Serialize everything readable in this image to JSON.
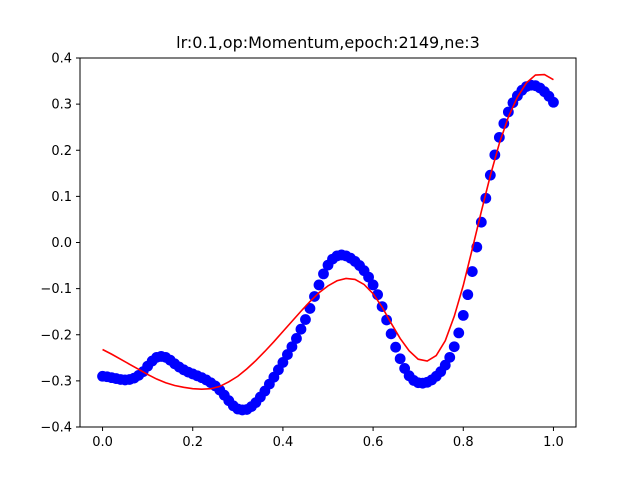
{
  "chart_data": {
    "type": "scatter",
    "title": "lr:0.1,op:Momentum,epoch:2149,ne:3",
    "xlabel": "",
    "ylabel": "",
    "xlim": [
      -0.05,
      1.05
    ],
    "ylim": [
      -0.4,
      0.4
    ],
    "x_ticks": [
      0.0,
      0.2,
      0.4,
      0.6,
      0.8,
      1.0
    ],
    "x_tick_labels": [
      "0.0",
      "0.2",
      "0.4",
      "0.6",
      "0.8",
      "1.0"
    ],
    "y_ticks": [
      -0.4,
      -0.3,
      -0.2,
      -0.1,
      0.0,
      0.1,
      0.2,
      0.3,
      0.4
    ],
    "y_tick_labels": [
      "−0.4",
      "−0.3",
      "−0.2",
      "−0.1",
      "0.0",
      "0.1",
      "0.2",
      "0.3",
      "0.4"
    ],
    "grid": false,
    "series": [
      {
        "kind": "scatter",
        "color": "#0000ff",
        "points": [
          [
            0.0,
            -0.29
          ],
          [
            0.01,
            -0.291
          ],
          [
            0.02,
            -0.293
          ],
          [
            0.03,
            -0.295
          ],
          [
            0.04,
            -0.297
          ],
          [
            0.05,
            -0.298
          ],
          [
            0.06,
            -0.297
          ],
          [
            0.07,
            -0.294
          ],
          [
            0.08,
            -0.288
          ],
          [
            0.09,
            -0.28
          ],
          [
            0.1,
            -0.268
          ],
          [
            0.11,
            -0.257
          ],
          [
            0.12,
            -0.249
          ],
          [
            0.13,
            -0.247
          ],
          [
            0.14,
            -0.249
          ],
          [
            0.15,
            -0.255
          ],
          [
            0.16,
            -0.263
          ],
          [
            0.17,
            -0.27
          ],
          [
            0.18,
            -0.276
          ],
          [
            0.19,
            -0.281
          ],
          [
            0.2,
            -0.285
          ],
          [
            0.21,
            -0.289
          ],
          [
            0.22,
            -0.293
          ],
          [
            0.23,
            -0.298
          ],
          [
            0.24,
            -0.304
          ],
          [
            0.25,
            -0.311
          ],
          [
            0.26,
            -0.32
          ],
          [
            0.27,
            -0.331
          ],
          [
            0.28,
            -0.343
          ],
          [
            0.29,
            -0.354
          ],
          [
            0.3,
            -0.361
          ],
          [
            0.31,
            -0.363
          ],
          [
            0.32,
            -0.362
          ],
          [
            0.33,
            -0.356
          ],
          [
            0.34,
            -0.347
          ],
          [
            0.35,
            -0.335
          ],
          [
            0.36,
            -0.322
          ],
          [
            0.37,
            -0.307
          ],
          [
            0.38,
            -0.292
          ],
          [
            0.39,
            -0.276
          ],
          [
            0.4,
            -0.26
          ],
          [
            0.41,
            -0.243
          ],
          [
            0.42,
            -0.226
          ],
          [
            0.43,
            -0.208
          ],
          [
            0.44,
            -0.188
          ],
          [
            0.45,
            -0.167
          ],
          [
            0.46,
            -0.143
          ],
          [
            0.47,
            -0.117
          ],
          [
            0.48,
            -0.092
          ],
          [
            0.49,
            -0.068
          ],
          [
            0.5,
            -0.049
          ],
          [
            0.51,
            -0.036
          ],
          [
            0.52,
            -0.029
          ],
          [
            0.53,
            -0.027
          ],
          [
            0.54,
            -0.029
          ],
          [
            0.55,
            -0.034
          ],
          [
            0.56,
            -0.041
          ],
          [
            0.57,
            -0.05
          ],
          [
            0.58,
            -0.061
          ],
          [
            0.59,
            -0.075
          ],
          [
            0.6,
            -0.092
          ],
          [
            0.61,
            -0.113
          ],
          [
            0.62,
            -0.139
          ],
          [
            0.63,
            -0.168
          ],
          [
            0.64,
            -0.198
          ],
          [
            0.65,
            -0.227
          ],
          [
            0.66,
            -0.252
          ],
          [
            0.67,
            -0.273
          ],
          [
            0.68,
            -0.289
          ],
          [
            0.69,
            -0.299
          ],
          [
            0.7,
            -0.304
          ],
          [
            0.71,
            -0.305
          ],
          [
            0.72,
            -0.303
          ],
          [
            0.73,
            -0.298
          ],
          [
            0.74,
            -0.29
          ],
          [
            0.75,
            -0.28
          ],
          [
            0.76,
            -0.266
          ],
          [
            0.77,
            -0.249
          ],
          [
            0.78,
            -0.226
          ],
          [
            0.79,
            -0.196
          ],
          [
            0.8,
            -0.158
          ],
          [
            0.81,
            -0.113
          ],
          [
            0.82,
            -0.063
          ],
          [
            0.83,
            -0.01
          ],
          [
            0.84,
            0.044
          ],
          [
            0.85,
            0.096
          ],
          [
            0.86,
            0.146
          ],
          [
            0.87,
            0.19
          ],
          [
            0.88,
            0.228
          ],
          [
            0.89,
            0.258
          ],
          [
            0.9,
            0.283
          ],
          [
            0.91,
            0.303
          ],
          [
            0.92,
            0.318
          ],
          [
            0.93,
            0.33
          ],
          [
            0.94,
            0.338
          ],
          [
            0.95,
            0.341
          ],
          [
            0.96,
            0.34
          ],
          [
            0.97,
            0.335
          ],
          [
            0.98,
            0.327
          ],
          [
            0.99,
            0.317
          ],
          [
            1.0,
            0.304
          ]
        ]
      },
      {
        "kind": "line",
        "color": "#ff0000",
        "points": [
          [
            0.0,
            -0.232
          ],
          [
            0.02,
            -0.242
          ],
          [
            0.04,
            -0.253
          ],
          [
            0.06,
            -0.264
          ],
          [
            0.08,
            -0.275
          ],
          [
            0.1,
            -0.286
          ],
          [
            0.12,
            -0.296
          ],
          [
            0.14,
            -0.304
          ],
          [
            0.16,
            -0.31
          ],
          [
            0.18,
            -0.314
          ],
          [
            0.2,
            -0.317
          ],
          [
            0.22,
            -0.318
          ],
          [
            0.24,
            -0.317
          ],
          [
            0.26,
            -0.312
          ],
          [
            0.28,
            -0.302
          ],
          [
            0.3,
            -0.29
          ],
          [
            0.32,
            -0.274
          ],
          [
            0.34,
            -0.256
          ],
          [
            0.36,
            -0.236
          ],
          [
            0.38,
            -0.215
          ],
          [
            0.4,
            -0.193
          ],
          [
            0.42,
            -0.171
          ],
          [
            0.44,
            -0.149
          ],
          [
            0.46,
            -0.128
          ],
          [
            0.48,
            -0.109
          ],
          [
            0.5,
            -0.094
          ],
          [
            0.52,
            -0.083
          ],
          [
            0.54,
            -0.078
          ],
          [
            0.56,
            -0.08
          ],
          [
            0.58,
            -0.091
          ],
          [
            0.6,
            -0.111
          ],
          [
            0.62,
            -0.14
          ],
          [
            0.64,
            -0.175
          ],
          [
            0.66,
            -0.208
          ],
          [
            0.68,
            -0.235
          ],
          [
            0.7,
            -0.253
          ],
          [
            0.72,
            -0.257
          ],
          [
            0.74,
            -0.245
          ],
          [
            0.76,
            -0.213
          ],
          [
            0.78,
            -0.16
          ],
          [
            0.8,
            -0.093
          ],
          [
            0.82,
            -0.014
          ],
          [
            0.84,
            0.067
          ],
          [
            0.86,
            0.145
          ],
          [
            0.88,
            0.215
          ],
          [
            0.9,
            0.272
          ],
          [
            0.92,
            0.315
          ],
          [
            0.94,
            0.346
          ],
          [
            0.96,
            0.363
          ],
          [
            0.98,
            0.364
          ],
          [
            1.0,
            0.353
          ]
        ]
      }
    ]
  }
}
